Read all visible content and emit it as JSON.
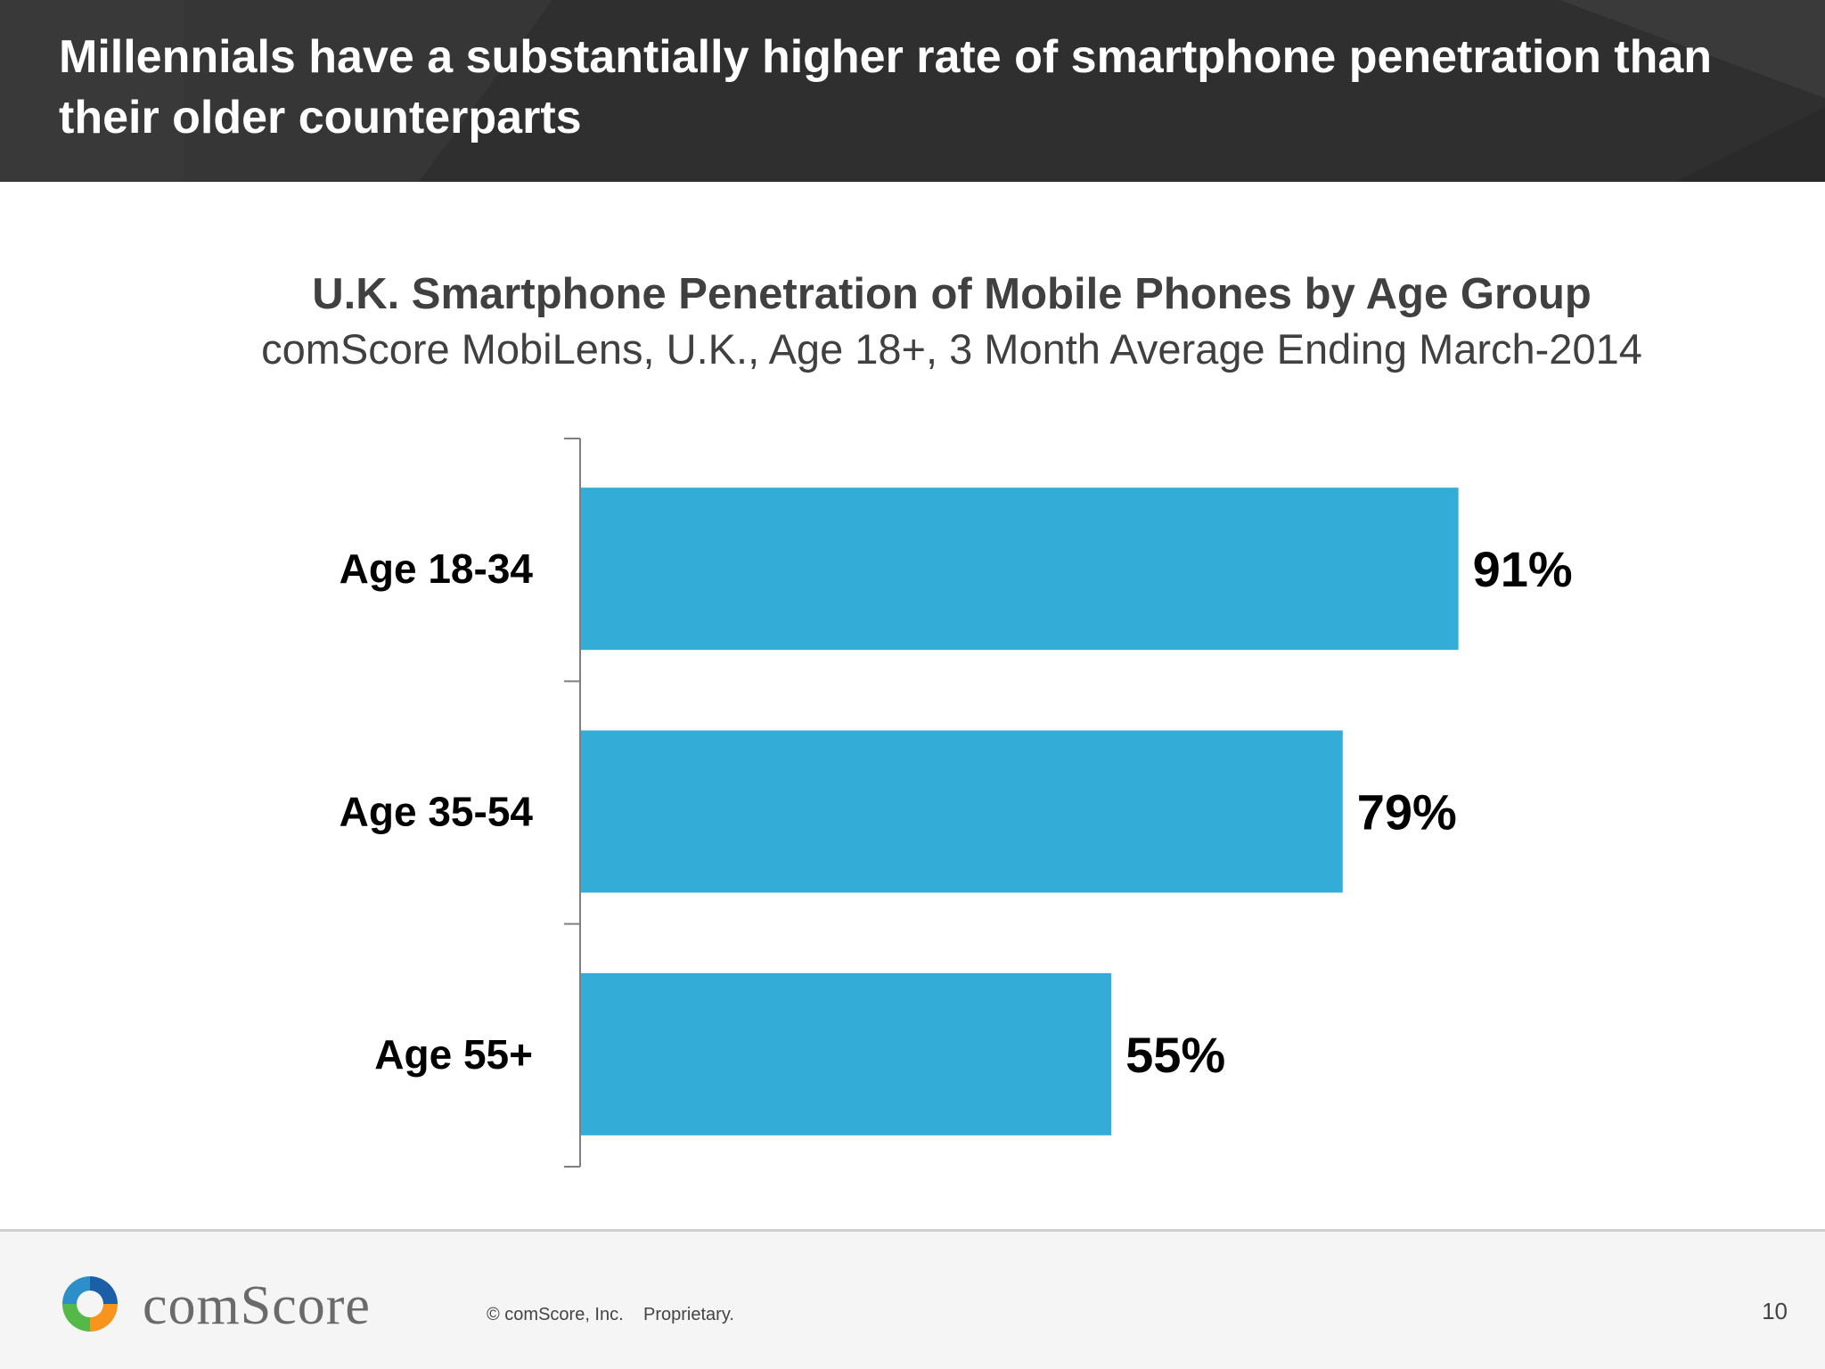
{
  "slide": {
    "title": "Millennials have a substantially higher rate of smartphone penetration than their older counterparts"
  },
  "chart_data": {
    "type": "bar",
    "orientation": "horizontal",
    "title": "U.K. Smartphone Penetration of Mobile Phones by Age Group",
    "subtitle": "comScore MobiLens, U.K., Age 18+, 3 Month Average Ending March-2014",
    "categories": [
      "Age 18-34",
      "Age 35-54",
      "Age 55+"
    ],
    "values": [
      91,
      79,
      55
    ],
    "value_labels": [
      "91%",
      "79%",
      "55%"
    ],
    "xlim": [
      0,
      100
    ],
    "grid": false,
    "legend": "none",
    "bar_color": "#33acd7"
  },
  "footer": {
    "logo": "comScore",
    "copyright": "© comScore, Inc.",
    "proprietary": "Proprietary.",
    "page_number": "10"
  },
  "colors": {
    "header_bg": "#2f2f2f",
    "bar": "#33acd7",
    "axis": "#7f7f7f"
  }
}
